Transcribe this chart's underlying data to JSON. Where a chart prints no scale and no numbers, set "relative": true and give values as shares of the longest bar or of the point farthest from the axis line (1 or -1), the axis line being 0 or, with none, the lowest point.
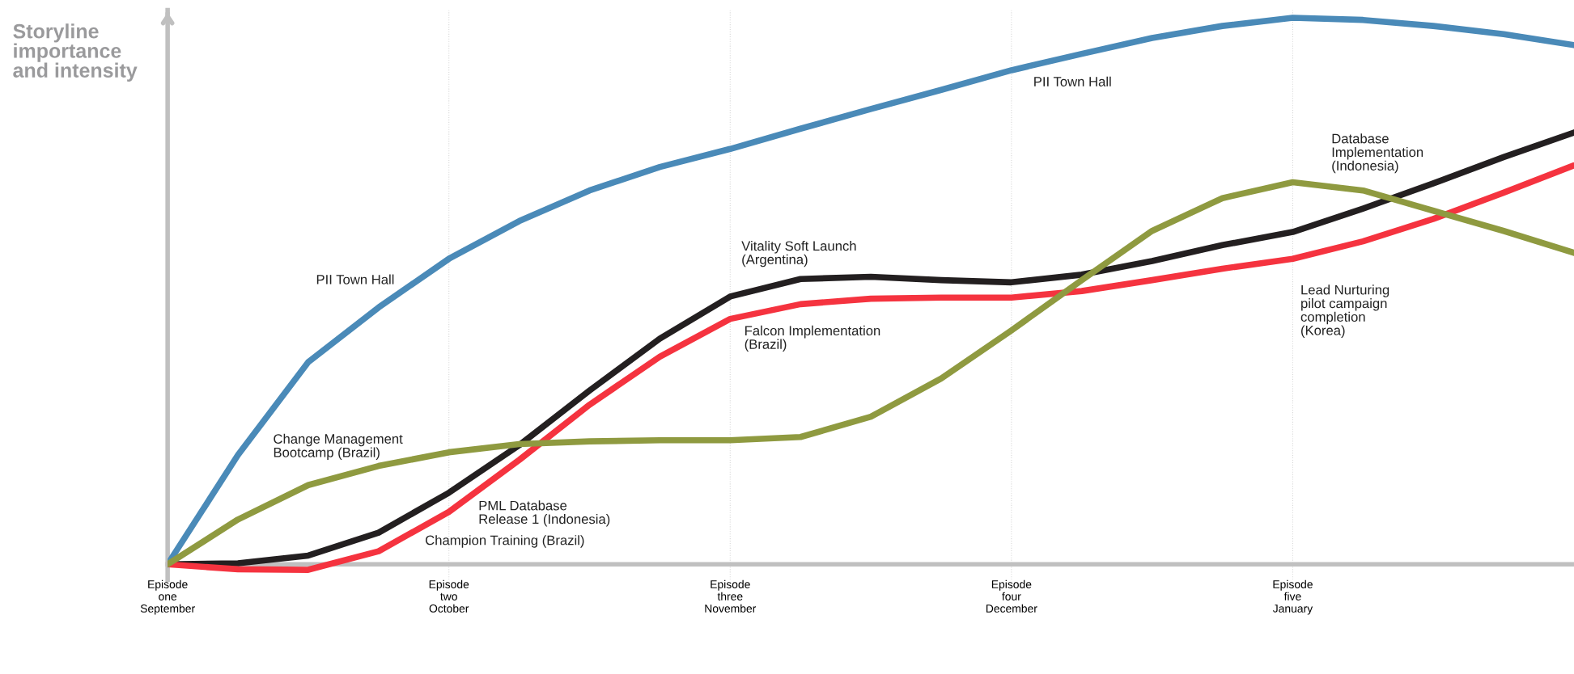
{
  "chart_data": {
    "type": "line",
    "relative": true,
    "ylabel": "Storyline\nimportance\nand intensity",
    "categories": [
      "Episode\none\nSeptember",
      null,
      null,
      null,
      "Episode\ntwo\nOctober",
      null,
      null,
      null,
      "Episode\nthree\nNovember",
      null,
      null,
      null,
      "Episode\nfour\nDecember",
      null,
      null,
      null,
      "Episode\nfive\nJanuary",
      null,
      null,
      null,
      null
    ],
    "grid": "x",
    "marker": "none",
    "line_style": "solid",
    "series": [
      {
        "color": "#4a8ab8",
        "values": [
          0,
          0.2,
          0.37,
          0.47,
          0.559,
          0.628,
          0.684,
          0.727,
          0.76,
          0.797,
          0.833,
          0.868,
          0.904,
          0.934,
          0.963,
          0.985,
          1,
          0.996,
          0.985,
          0.97,
          0.95
        ]
      },
      {
        "color": "#231f20",
        "values": [
          0,
          0.002,
          0.016,
          0.058,
          0.131,
          0.218,
          0.318,
          0.413,
          0.49,
          0.522,
          0.526,
          0.52,
          0.516,
          0.53,
          0.555,
          0.584,
          0.608,
          0.651,
          0.697,
          0.745,
          0.79
        ]
      },
      {
        "color": "#f5333f",
        "values": [
          0,
          -0.009,
          -0.01,
          0.024,
          0.096,
          0.191,
          0.292,
          0.38,
          0.449,
          0.476,
          0.486,
          0.488,
          0.488,
          0.5,
          0.52,
          0.541,
          0.559,
          0.591,
          0.632,
          0.68,
          0.73
        ]
      },
      {
        "color": "#8f9a40",
        "values": [
          0,
          0.082,
          0.145,
          0.18,
          0.205,
          0.22,
          0.225,
          0.227,
          0.227,
          0.233,
          0.27,
          0.34,
          0.428,
          0.52,
          0.61,
          0.67,
          0.699,
          0.684,
          0.647,
          0.61,
          0.57
        ]
      }
    ],
    "annotations": [
      "PII Town Hall",
      "Change Management\nBootcamp (Brazil)",
      "PML Database\nRelease 1 (Indonesia)",
      "Champion Training (Brazil)",
      "Vitality Soft Launch\n(Argentina)",
      "Falcon Implementation\n(Brazil)",
      "PII Town Hall",
      "Database\nImplementation\n(Indonesia)",
      "Lead Nurturing\npilot campaign\ncompletion\n(Korea)"
    ]
  }
}
